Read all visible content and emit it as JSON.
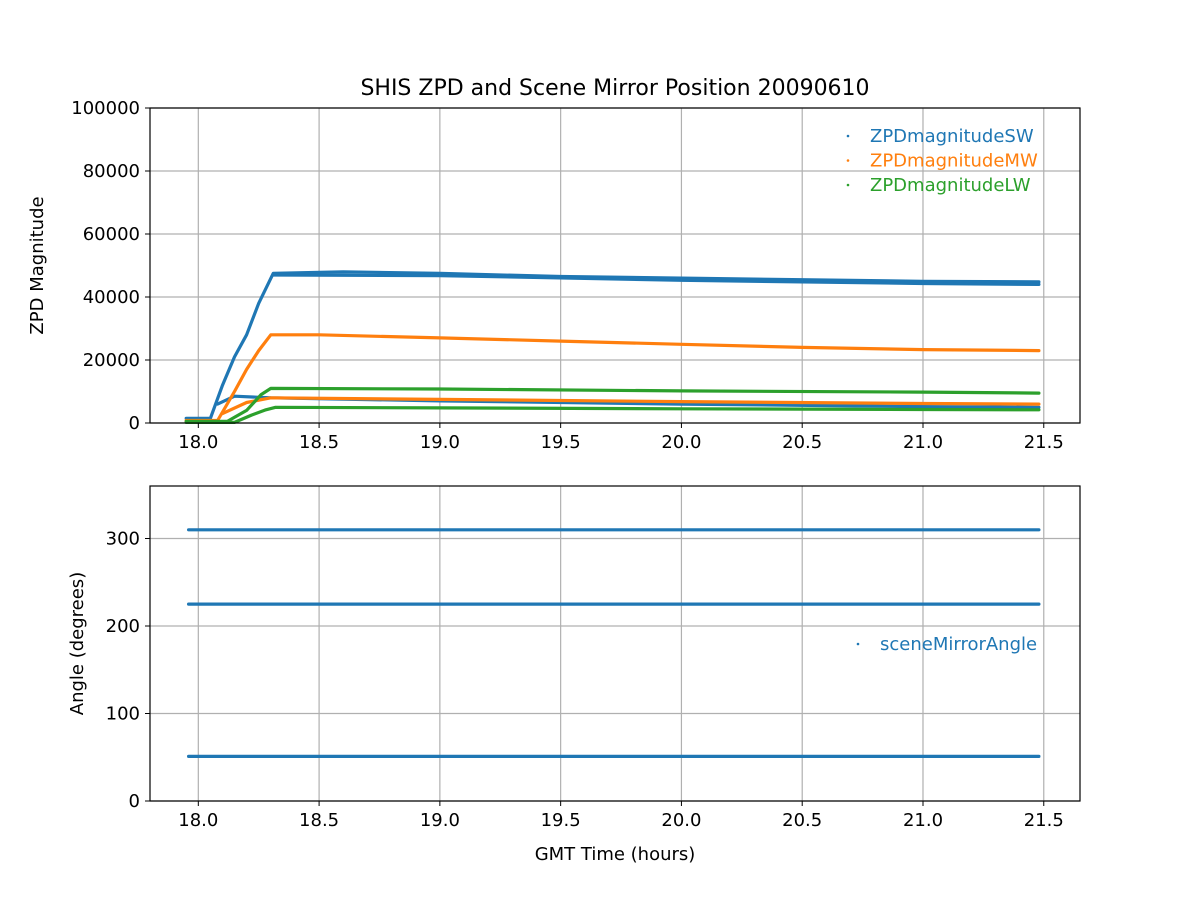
{
  "title": "SHIS ZPD and Scene Mirror Position 20090610",
  "chart_data": [
    {
      "type": "scatter",
      "ylabel": "ZPD Magnitude",
      "xlabel": "",
      "xlim": [
        17.8,
        21.65
      ],
      "ylim": [
        0,
        100000
      ],
      "x_ticks": [
        18.0,
        18.5,
        19.0,
        19.5,
        20.0,
        20.5,
        21.0,
        21.5
      ],
      "x_tick_labels": [
        "18.0",
        "18.5",
        "19.0",
        "19.5",
        "20.0",
        "20.5",
        "21.0",
        "21.5"
      ],
      "y_ticks": [
        0,
        20000,
        40000,
        60000,
        80000,
        100000
      ],
      "y_tick_labels": [
        "0",
        "20000",
        "40000",
        "60000",
        "80000",
        "100000"
      ],
      "grid": true,
      "legend_position": "top-right",
      "series": [
        {
          "name": "ZPDmagnitudeSW",
          "color": "#1f77b4",
          "traces": [
            [
              [
                17.95,
                1500
              ],
              [
                18.05,
                1500
              ],
              [
                18.1,
                12000
              ],
              [
                18.15,
                21000
              ],
              [
                18.2,
                28000
              ],
              [
                18.25,
                38000
              ],
              [
                18.31,
                47500
              ],
              [
                18.6,
                48000
              ],
              [
                19.0,
                47500
              ],
              [
                19.5,
                46500
              ],
              [
                20.0,
                46000
              ],
              [
                20.5,
                45500
              ],
              [
                21.0,
                45000
              ],
              [
                21.48,
                44800
              ]
            ],
            [
              [
                18.31,
                47000
              ],
              [
                19.0,
                46800
              ],
              [
                20.0,
                45300
              ],
              [
                21.0,
                44300
              ],
              [
                21.48,
                44000
              ]
            ],
            [
              [
                18.08,
                6000
              ],
              [
                18.15,
                8500
              ],
              [
                18.3,
                8000
              ],
              [
                19.0,
                7000
              ],
              [
                20.0,
                6000
              ],
              [
                21.0,
                5200
              ],
              [
                21.48,
                5000
              ]
            ]
          ]
        },
        {
          "name": "ZPDmagnitudeMW",
          "color": "#ff7f0e",
          "traces": [
            [
              [
                17.95,
                800
              ],
              [
                18.08,
                800
              ],
              [
                18.15,
                10000
              ],
              [
                18.2,
                17000
              ],
              [
                18.25,
                23000
              ],
              [
                18.3,
                28000
              ],
              [
                18.5,
                28000
              ],
              [
                19.0,
                27000
              ],
              [
                19.5,
                26000
              ],
              [
                20.0,
                25000
              ],
              [
                20.5,
                24000
              ],
              [
                21.0,
                23300
              ],
              [
                21.48,
                23000
              ]
            ],
            [
              [
                18.1,
                3000
              ],
              [
                18.2,
                6500
              ],
              [
                18.3,
                8000
              ],
              [
                19.0,
                7500
              ],
              [
                20.0,
                6800
              ],
              [
                21.0,
                6200
              ],
              [
                21.48,
                6000
              ]
            ]
          ]
        },
        {
          "name": "ZPDmagnitudeLW",
          "color": "#2ca02c",
          "traces": [
            [
              [
                17.95,
                500
              ],
              [
                18.12,
                500
              ],
              [
                18.2,
                4000
              ],
              [
                18.26,
                9000
              ],
              [
                18.3,
                11000
              ],
              [
                19.0,
                10800
              ],
              [
                20.0,
                10200
              ],
              [
                21.0,
                9800
              ],
              [
                21.48,
                9500
              ]
            ],
            [
              [
                17.95,
                200
              ],
              [
                18.15,
                200
              ],
              [
                18.22,
                2500
              ],
              [
                18.28,
                4200
              ],
              [
                18.32,
                5000
              ],
              [
                19.0,
                4800
              ],
              [
                20.0,
                4500
              ],
              [
                21.0,
                4300
              ],
              [
                21.48,
                4200
              ]
            ]
          ]
        }
      ]
    },
    {
      "type": "scatter",
      "ylabel": "Angle (degrees)",
      "xlabel": "GMT Time (hours)",
      "xlim": [
        17.8,
        21.65
      ],
      "ylim": [
        0,
        360
      ],
      "x_ticks": [
        18.0,
        18.5,
        19.0,
        19.5,
        20.0,
        20.5,
        21.0,
        21.5
      ],
      "x_tick_labels": [
        "18.0",
        "18.5",
        "19.0",
        "19.5",
        "20.0",
        "20.5",
        "21.0",
        "21.5"
      ],
      "y_ticks": [
        0,
        100,
        200,
        300
      ],
      "y_tick_labels": [
        "0",
        "100",
        "200",
        "300"
      ],
      "grid": true,
      "legend_position": "center-right",
      "series": [
        {
          "name": "sceneMirrorAngle",
          "color": "#1f77b4",
          "traces": [
            [
              [
                17.96,
                310
              ],
              [
                21.48,
                310
              ]
            ],
            [
              [
                17.96,
                225
              ],
              [
                21.48,
                225
              ]
            ],
            [
              [
                17.96,
                51
              ],
              [
                21.48,
                51
              ]
            ]
          ]
        }
      ]
    }
  ]
}
